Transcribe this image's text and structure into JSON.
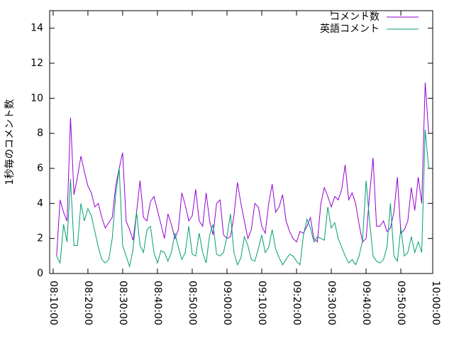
{
  "chart_data": {
    "type": "line",
    "ylabel": "1秒毎のコメント数",
    "x": [
      "08:11:00",
      "08:12:00",
      "08:13:00",
      "08:14:00",
      "08:15:00",
      "08:16:00",
      "08:17:00",
      "08:18:00",
      "08:19:00",
      "08:20:00",
      "08:21:00",
      "08:22:00",
      "08:23:00",
      "08:24:00",
      "08:25:00",
      "08:26:00",
      "08:27:00",
      "08:28:00",
      "08:29:00",
      "08:30:00",
      "08:31:00",
      "08:32:00",
      "08:33:00",
      "08:34:00",
      "08:35:00",
      "08:36:00",
      "08:37:00",
      "08:38:00",
      "08:39:00",
      "08:40:00",
      "08:41:00",
      "08:42:00",
      "08:43:00",
      "08:44:00",
      "08:45:00",
      "08:46:00",
      "08:47:00",
      "08:48:00",
      "08:49:00",
      "08:50:00",
      "08:51:00",
      "08:52:00",
      "08:53:00",
      "08:54:00",
      "08:55:00",
      "08:56:00",
      "08:57:00",
      "08:58:00",
      "08:59:00",
      "09:00:00",
      "09:01:00",
      "09:02:00",
      "09:03:00",
      "09:04:00",
      "09:05:00",
      "09:06:00",
      "09:07:00",
      "09:08:00",
      "09:09:00",
      "09:10:00",
      "09:11:00",
      "09:12:00",
      "09:13:00",
      "09:14:00",
      "09:15:00",
      "09:16:00",
      "09:17:00",
      "09:18:00",
      "09:19:00",
      "09:20:00",
      "09:21:00",
      "09:22:00",
      "09:23:00",
      "09:24:00",
      "09:25:00",
      "09:26:00",
      "09:27:00",
      "09:28:00",
      "09:29:00",
      "09:30:00",
      "09:31:00",
      "09:32:00",
      "09:33:00",
      "09:34:00",
      "09:35:00",
      "09:36:00",
      "09:37:00",
      "09:38:00",
      "09:39:00",
      "09:40:00",
      "09:41:00",
      "09:42:00",
      "09:43:00",
      "09:44:00",
      "09:45:00",
      "09:46:00",
      "09:47:00",
      "09:48:00",
      "09:49:00",
      "09:50:00",
      "09:51:00",
      "09:52:00",
      "09:53:00",
      "09:54:00",
      "09:55:00",
      "09:56:00",
      "09:57:00",
      "09:58:00"
    ],
    "series": [
      {
        "name": "コメント数",
        "color": "#9400d3",
        "values": [
          1.0,
          4.2,
          3.5,
          3.0,
          8.9,
          4.5,
          5.5,
          6.7,
          5.8,
          5.0,
          4.6,
          3.8,
          4.0,
          3.2,
          2.6,
          2.9,
          3.2,
          5.0,
          6.0,
          6.9,
          3.0,
          2.5,
          1.9,
          3.5,
          5.3,
          3.2,
          3.0,
          4.1,
          4.4,
          3.6,
          2.8,
          2.0,
          3.4,
          2.8,
          2.0,
          2.5,
          4.6,
          3.9,
          3.0,
          3.3,
          4.8,
          3.0,
          2.7,
          4.6,
          3.0,
          2.2,
          4.0,
          4.2,
          2.2,
          2.0,
          2.1,
          3.3,
          5.2,
          4.0,
          3.0,
          2.0,
          2.5,
          4.0,
          3.8,
          2.7,
          2.3,
          4.0,
          5.1,
          3.5,
          3.8,
          4.5,
          3.0,
          2.4,
          2.0,
          1.8,
          2.4,
          2.3,
          2.7,
          3.2,
          2.0,
          1.8,
          4.0,
          4.9,
          4.4,
          3.8,
          4.4,
          4.2,
          4.8,
          6.2,
          4.2,
          4.6,
          4.0,
          2.8,
          1.8,
          2.0,
          4.5,
          6.6,
          2.7,
          2.7,
          3.0,
          2.4,
          2.6,
          3.5,
          5.5,
          2.3,
          2.5,
          3.0,
          4.9,
          3.6,
          5.5,
          4.0,
          10.9,
          8.0
        ]
      },
      {
        "name": "英語コメント",
        "color": "#009e73",
        "values": [
          1.0,
          0.6,
          2.8,
          1.8,
          5.4,
          1.6,
          1.6,
          4.0,
          3.0,
          3.7,
          3.3,
          2.4,
          1.5,
          0.8,
          0.6,
          0.8,
          2.0,
          4.5,
          6.0,
          1.6,
          1.0,
          0.4,
          1.4,
          3.5,
          1.6,
          1.2,
          2.5,
          2.7,
          1.2,
          0.6,
          1.3,
          1.2,
          0.7,
          1.2,
          2.3,
          1.5,
          0.8,
          1.2,
          2.7,
          1.1,
          1.0,
          2.3,
          1.2,
          0.6,
          2.2,
          2.8,
          1.1,
          1.0,
          1.2,
          2.1,
          3.4,
          1.2,
          0.5,
          0.9,
          2.1,
          1.6,
          0.8,
          0.7,
          1.4,
          2.2,
          1.2,
          1.5,
          2.5,
          1.4,
          0.9,
          0.5,
          0.8,
          1.1,
          1.0,
          0.7,
          0.5,
          2.2,
          3.1,
          2.6,
          1.8,
          2.1,
          2.0,
          1.9,
          3.8,
          2.6,
          2.9,
          2.0,
          1.5,
          1.0,
          0.6,
          0.8,
          0.5,
          1.0,
          1.9,
          5.3,
          3.0,
          1.0,
          0.7,
          0.6,
          0.8,
          1.5,
          4.0,
          1.0,
          0.7,
          2.6,
          1.0,
          1.2,
          2.1,
          1.2,
          1.8,
          1.2,
          8.2,
          6.0
        ]
      }
    ],
    "xlim": [
      "08:09:00",
      "09:59:10"
    ],
    "xticks": [
      "08:10:00",
      "08:20:00",
      "08:30:00",
      "08:40:00",
      "08:50:00",
      "09:00:00",
      "09:10:00",
      "09:20:00",
      "09:30:00",
      "09:40:00",
      "09:50:00",
      "10:00:00"
    ],
    "ylim": [
      0,
      15
    ],
    "yticks": [
      0,
      2,
      4,
      6,
      8,
      10,
      12,
      14
    ],
    "legend": "top-right"
  }
}
